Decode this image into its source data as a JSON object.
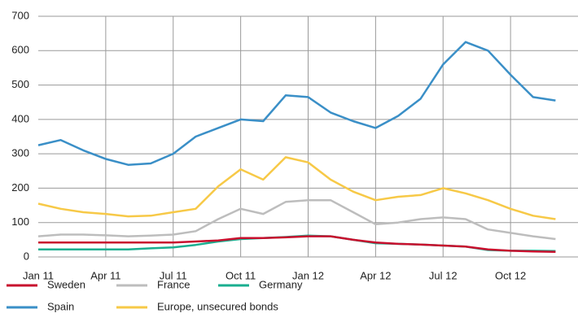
{
  "chart_data": {
    "type": "line",
    "x": [
      "Jan 11",
      "Feb 11",
      "Mar 11",
      "Apr 11",
      "May 11",
      "Jun 11",
      "Jul 11",
      "Aug 11",
      "Sep 11",
      "Oct 11",
      "Nov 11",
      "Dec 11",
      "Jan 12",
      "Feb 12",
      "Mar 12",
      "Apr 12",
      "May 12",
      "Jun 12",
      "Jul 12",
      "Aug 12",
      "Sep 12",
      "Oct 12",
      "Nov 12",
      "Dec 12"
    ],
    "xticks": [
      "Jan 11",
      "Apr 11",
      "Jul 11",
      "Oct 11",
      "Jan 12",
      "Apr 12",
      "Jul 12",
      "Oct 12"
    ],
    "ylim": [
      0,
      700
    ],
    "yticks": [
      0,
      100,
      200,
      300,
      400,
      500,
      600,
      700
    ],
    "grid": true,
    "series": [
      {
        "name": "Sweden",
        "color": "#c8102e",
        "values": [
          42,
          42,
          42,
          42,
          42,
          42,
          42,
          45,
          48,
          55,
          55,
          57,
          60,
          60,
          50,
          42,
          38,
          36,
          33,
          30,
          22,
          18,
          16,
          15
        ]
      },
      {
        "name": "Spain",
        "color": "#3a8fc7",
        "values": [
          325,
          340,
          310,
          285,
          268,
          272,
          300,
          350,
          375,
          400,
          395,
          470,
          465,
          420,
          395,
          375,
          410,
          460,
          560,
          625,
          600,
          530,
          465,
          455
        ]
      },
      {
        "name": "France",
        "color": "#bdbdbd",
        "values": [
          60,
          65,
          65,
          63,
          60,
          62,
          65,
          75,
          110,
          140,
          125,
          160,
          165,
          165,
          130,
          95,
          100,
          110,
          115,
          110,
          80,
          70,
          60,
          52
        ]
      },
      {
        "name": "Europe, unsecured bonds",
        "color": "#f7c947",
        "values": [
          155,
          140,
          130,
          125,
          118,
          120,
          130,
          140,
          205,
          255,
          225,
          290,
          275,
          225,
          190,
          165,
          175,
          180,
          200,
          185,
          165,
          140,
          120,
          110
        ]
      },
      {
        "name": "Germany",
        "color": "#1aae8f",
        "values": [
          22,
          22,
          22,
          22,
          22,
          25,
          28,
          35,
          45,
          52,
          55,
          58,
          62,
          60,
          50,
          40,
          38,
          36,
          33,
          30,
          20,
          18,
          18,
          17
        ]
      }
    ]
  }
}
